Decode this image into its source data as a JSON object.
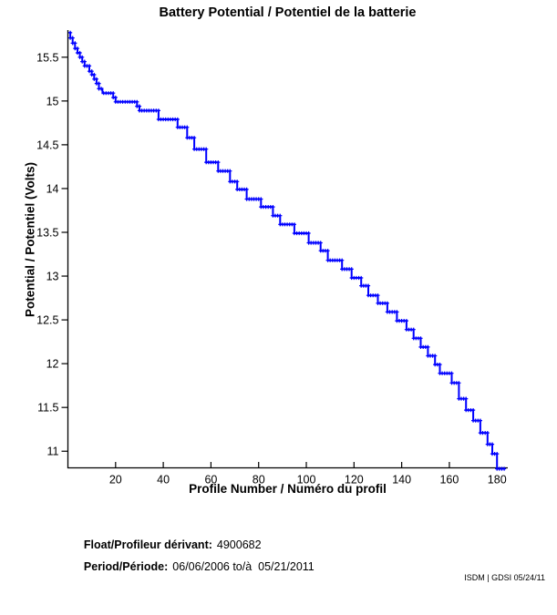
{
  "page": {
    "background": "#FFFFFF",
    "text_color": "#000000"
  },
  "chart_data": {
    "type": "line",
    "style": "matlab-step-line-with-plus-markers",
    "title": "Battery Potential / Potentiel de la batterie",
    "xlabel": "Profile Number / Numéro du profil",
    "ylabel": "Potential / Potentiel (Volts)",
    "xlim": [
      0,
      184.5
    ],
    "ylim": [
      10.81,
      15.81
    ],
    "xticks": [
      20,
      40,
      60,
      80,
      100,
      120,
      140,
      160,
      180
    ],
    "yticks": [
      11,
      11.5,
      12,
      12.5,
      13,
      13.5,
      14,
      14.5,
      15,
      15.5
    ],
    "grid": false,
    "legend": "none",
    "line_color": "#0000FF",
    "axis_color": "#000000",
    "marker": "+",
    "series": [
      {
        "name": "battery-potential-volts-vs-profile",
        "note": "segments are [profile_start, profile_end, volts] plateaus of the stepped discharge curve",
        "segments": [
          [
            0.5,
            1,
            15.78
          ],
          [
            1,
            2,
            15.72
          ],
          [
            2,
            3,
            15.66
          ],
          [
            3,
            4,
            15.6
          ],
          [
            4,
            5,
            15.55
          ],
          [
            5,
            6,
            15.5
          ],
          [
            6,
            7,
            15.45
          ],
          [
            7,
            9,
            15.4
          ],
          [
            9,
            10,
            15.34
          ],
          [
            10,
            11,
            15.3
          ],
          [
            11,
            12,
            15.25
          ],
          [
            12,
            13,
            15.2
          ],
          [
            13,
            14.5,
            15.14
          ],
          [
            14.5,
            19,
            15.09
          ],
          [
            19,
            20,
            15.04
          ],
          [
            20,
            29,
            14.99
          ],
          [
            29,
            30,
            14.94
          ],
          [
            30,
            38,
            14.89
          ],
          [
            38,
            46,
            14.79
          ],
          [
            46,
            50,
            14.7
          ],
          [
            50,
            53,
            14.58
          ],
          [
            53,
            58,
            14.45
          ],
          [
            58,
            63,
            14.3
          ],
          [
            63,
            68,
            14.2
          ],
          [
            68,
            71,
            14.08
          ],
          [
            71,
            75,
            13.99
          ],
          [
            75,
            81,
            13.88
          ],
          [
            81,
            86,
            13.79
          ],
          [
            86,
            89,
            13.69
          ],
          [
            89,
            95,
            13.59
          ],
          [
            95,
            101,
            13.49
          ],
          [
            101,
            106,
            13.38
          ],
          [
            106,
            109,
            13.29
          ],
          [
            109,
            115,
            13.18
          ],
          [
            115,
            119,
            13.08
          ],
          [
            119,
            123,
            12.98
          ],
          [
            123,
            126,
            12.89
          ],
          [
            126,
            130,
            12.78
          ],
          [
            130,
            134,
            12.69
          ],
          [
            134,
            138,
            12.59
          ],
          [
            138,
            142,
            12.49
          ],
          [
            142,
            145,
            12.39
          ],
          [
            145,
            148,
            12.29
          ],
          [
            148,
            151,
            12.19
          ],
          [
            151,
            154,
            12.09
          ],
          [
            154,
            156,
            11.99
          ],
          [
            156,
            161,
            11.89
          ],
          [
            161,
            164,
            11.78
          ],
          [
            164,
            167,
            11.6
          ],
          [
            167,
            170,
            11.47
          ],
          [
            170,
            173,
            11.35
          ],
          [
            173,
            176,
            11.21
          ],
          [
            176,
            178,
            11.08
          ],
          [
            178,
            180,
            10.97
          ],
          [
            180,
            183.3,
            10.8
          ]
        ]
      }
    ]
  },
  "annotations": {
    "float_label": "Float/Profileur dérivant:",
    "float_value": "4900682",
    "period_label": "Period/Période:",
    "period_value": "06/06/2006 to/à  05/21/2011",
    "credit": "ISDM | GDSI 05/24/11"
  }
}
